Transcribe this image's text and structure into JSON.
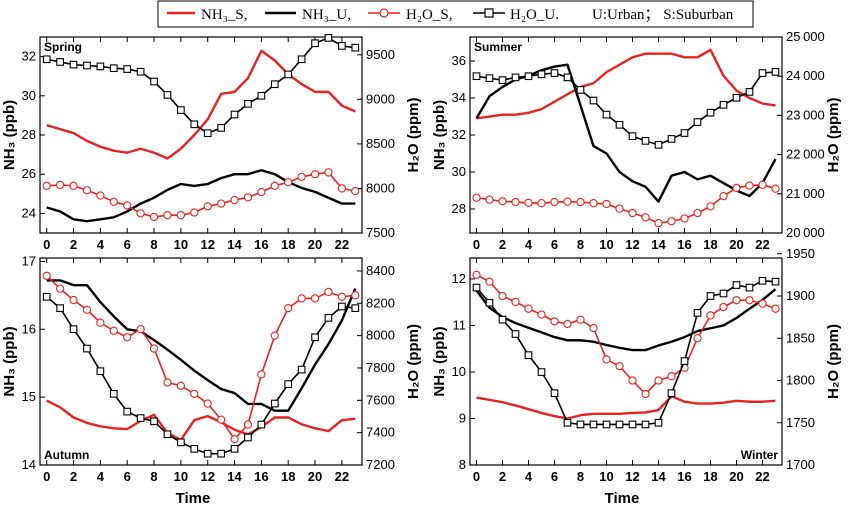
{
  "legend": {
    "nh3_s": "NH₃_S,",
    "nh3_u": "NH₃_U,",
    "h2o_s": "H₂O_S,",
    "h2o_u": "H₂O_U.",
    "note": "U:Urban； S:Suburban"
  },
  "colors": {
    "suburban": "#e8231f",
    "urban": "#000000",
    "marker_fill": "#ffffff"
  },
  "axes": {
    "y_left": "NH₃ (ppb)",
    "y_right": "H₂O (ppm)",
    "x": "Time"
  },
  "chart_data": [
    {
      "type": "line",
      "panel": "top-left",
      "title": "Spring",
      "xlim": [
        -0.5,
        23.5
      ],
      "xticks": [
        0,
        2,
        4,
        6,
        8,
        10,
        12,
        14,
        16,
        18,
        20,
        22
      ],
      "ylim_left": [
        23,
        33
      ],
      "yticks_left": [
        24,
        26,
        28,
        30,
        32
      ],
      "ylim_right": [
        7500,
        9700
      ],
      "yticks_right": [
        7500,
        8000,
        8500,
        9000,
        9500
      ],
      "series": [
        {
          "name": "NH3_S",
          "axis": "left",
          "values": [
            28.5,
            28.3,
            28.1,
            27.7,
            27.4,
            27.2,
            27.1,
            27.3,
            27.1,
            26.8,
            27.3,
            28.0,
            28.8,
            30.1,
            30.2,
            30.9,
            32.3,
            31.8,
            31.1,
            30.6,
            30.2,
            30.2,
            29.5,
            29.2
          ]
        },
        {
          "name": "NH3_U",
          "axis": "left",
          "values": [
            24.3,
            24.1,
            23.7,
            23.6,
            23.7,
            23.8,
            24.1,
            24.5,
            24.8,
            25.2,
            25.5,
            25.4,
            25.5,
            25.8,
            26.0,
            26.0,
            26.2,
            26.0,
            25.6,
            25.3,
            25.1,
            24.8,
            24.5,
            24.5
          ]
        },
        {
          "name": "H2O_S",
          "axis": "right",
          "values": [
            8030,
            8040,
            8030,
            7980,
            7920,
            7850,
            7810,
            7720,
            7680,
            7700,
            7700,
            7730,
            7800,
            7830,
            7870,
            7900,
            7960,
            8030,
            8070,
            8130,
            8160,
            8180,
            8000,
            7970
          ]
        },
        {
          "name": "H2O_U",
          "axis": "right",
          "values": [
            9450,
            9420,
            9390,
            9380,
            9370,
            9350,
            9340,
            9310,
            9200,
            9050,
            8880,
            8720,
            8620,
            8680,
            8830,
            8950,
            9040,
            9170,
            9280,
            9450,
            9630,
            9690,
            9600,
            9580
          ]
        }
      ]
    },
    {
      "type": "line",
      "panel": "top-right",
      "title": "Summer",
      "xlim": [
        -0.5,
        23.5
      ],
      "xticks": [
        0,
        2,
        4,
        6,
        8,
        10,
        12,
        14,
        16,
        18,
        20,
        22
      ],
      "ylim_left": [
        26.7,
        37.3
      ],
      "yticks_left": [
        28,
        30,
        32,
        34,
        36
      ],
      "ylim_right": [
        20000,
        25000
      ],
      "yticks_right": [
        20000,
        21000,
        22000,
        23000,
        24000,
        25000
      ],
      "series": [
        {
          "name": "NH3_S",
          "axis": "left",
          "values": [
            32.9,
            33.0,
            33.1,
            33.1,
            33.2,
            33.4,
            33.8,
            34.2,
            34.6,
            34.8,
            35.4,
            35.8,
            36.2,
            36.4,
            36.4,
            36.4,
            36.2,
            36.2,
            36.6,
            35.2,
            34.4,
            34.0,
            33.7,
            33.6
          ]
        },
        {
          "name": "NH3_U",
          "axis": "left",
          "values": [
            32.9,
            34.1,
            34.6,
            35.0,
            35.2,
            35.5,
            35.7,
            35.8,
            33.6,
            31.4,
            31.0,
            30.0,
            29.5,
            29.2,
            28.4,
            29.8,
            30.0,
            29.6,
            29.8,
            29.4,
            29.0,
            28.7,
            29.4,
            30.7
          ]
        },
        {
          "name": "H2O_S",
          "axis": "right",
          "values": [
            20900,
            20850,
            20810,
            20790,
            20770,
            20760,
            20790,
            20800,
            20790,
            20760,
            20740,
            20620,
            20510,
            20400,
            20250,
            20300,
            20370,
            20510,
            20680,
            20940,
            21150,
            21210,
            21230,
            21130
          ]
        },
        {
          "name": "H2O_U",
          "axis": "right",
          "values": [
            24000,
            23950,
            23900,
            23970,
            24000,
            24050,
            24080,
            23970,
            23650,
            23380,
            23020,
            22760,
            22470,
            22350,
            22250,
            22400,
            22550,
            22830,
            23070,
            23270,
            23450,
            23600,
            24080,
            24110
          ]
        }
      ]
    },
    {
      "type": "line",
      "panel": "bottom-left",
      "title": "Autumn",
      "xlim": [
        -0.5,
        23.5
      ],
      "xticks": [
        0,
        2,
        4,
        6,
        8,
        10,
        12,
        14,
        16,
        18,
        20,
        22
      ],
      "ylim_left": [
        14.0,
        17.05
      ],
      "yticks_left": [
        14,
        15,
        16,
        17
      ],
      "ylim_right": [
        7200,
        8480
      ],
      "yticks_right": [
        7200,
        7400,
        7600,
        7800,
        8000,
        8200,
        8400
      ],
      "series": [
        {
          "name": "NH3_S",
          "axis": "left",
          "values": [
            14.95,
            14.85,
            14.7,
            14.62,
            14.57,
            14.54,
            14.53,
            14.65,
            14.74,
            14.47,
            14.37,
            14.66,
            14.72,
            14.63,
            14.52,
            14.45,
            14.56,
            14.7,
            14.7,
            14.6,
            14.54,
            14.5,
            14.66,
            14.68
          ]
        },
        {
          "name": "NH3_U",
          "axis": "left",
          "values": [
            16.72,
            16.72,
            16.65,
            16.65,
            16.4,
            16.19,
            16.0,
            15.97,
            15.84,
            15.7,
            15.55,
            15.39,
            15.25,
            15.12,
            15.06,
            14.9,
            14.9,
            14.8,
            14.8,
            15.13,
            15.48,
            15.78,
            16.13,
            16.6
          ]
        },
        {
          "name": "H2O_S",
          "axis": "right",
          "values": [
            8370,
            8290,
            8220,
            8160,
            8080,
            8030,
            7990,
            8040,
            7920,
            7710,
            7690,
            7640,
            7580,
            7480,
            7360,
            7450,
            7760,
            8000,
            8170,
            8230,
            8230,
            8270,
            8240,
            8250
          ]
        },
        {
          "name": "H2O_U",
          "axis": "right",
          "values": [
            8240,
            8170,
            8040,
            7920,
            7780,
            7640,
            7530,
            7490,
            7470,
            7390,
            7340,
            7300,
            7270,
            7270,
            7300,
            7370,
            7450,
            7580,
            7700,
            7790,
            7990,
            8110,
            8180,
            8170
          ]
        }
      ]
    },
    {
      "type": "line",
      "panel": "bottom-right",
      "title": "Winter",
      "xlim": [
        -0.5,
        23.5
      ],
      "xticks": [
        0,
        2,
        4,
        6,
        8,
        10,
        12,
        14,
        16,
        18,
        20,
        22
      ],
      "ylim_left": [
        8,
        12.45
      ],
      "yticks_left": [
        8,
        9,
        10,
        11,
        12
      ],
      "ylim_right": [
        1700,
        1945
      ],
      "yticks_right": [
        1700,
        1750,
        1800,
        1850,
        1900,
        1950
      ],
      "series": [
        {
          "name": "NH3_S",
          "axis": "left",
          "values": [
            9.45,
            9.4,
            9.35,
            9.28,
            9.2,
            9.12,
            9.05,
            9.0,
            9.07,
            9.1,
            9.1,
            9.1,
            9.12,
            9.13,
            9.18,
            9.48,
            9.36,
            9.32,
            9.32,
            9.34,
            9.38,
            9.36,
            9.36,
            9.38
          ]
        },
        {
          "name": "NH3_U",
          "axis": "left",
          "values": [
            11.75,
            11.38,
            11.18,
            11.05,
            10.95,
            10.85,
            10.75,
            10.68,
            10.68,
            10.65,
            10.58,
            10.52,
            10.47,
            10.47,
            10.57,
            10.65,
            10.75,
            10.88,
            10.94,
            11.0,
            11.16,
            11.36,
            11.55,
            11.78
          ]
        },
        {
          "name": "H2O_S",
          "axis": "right",
          "values": [
            1925,
            1917,
            1900,
            1893,
            1885,
            1878,
            1870,
            1867,
            1872,
            1862,
            1825,
            1817,
            1800,
            1784,
            1800,
            1805,
            1815,
            1850,
            1877,
            1887,
            1895,
            1895,
            1891,
            1885
          ]
        },
        {
          "name": "H2O_U",
          "axis": "right",
          "values": [
            1910,
            1892,
            1872,
            1855,
            1830,
            1810,
            1785,
            1750,
            1748,
            1748,
            1748,
            1748,
            1748,
            1748,
            1750,
            1785,
            1823,
            1880,
            1900,
            1903,
            1913,
            1910,
            1918,
            1917
          ]
        }
      ]
    }
  ]
}
